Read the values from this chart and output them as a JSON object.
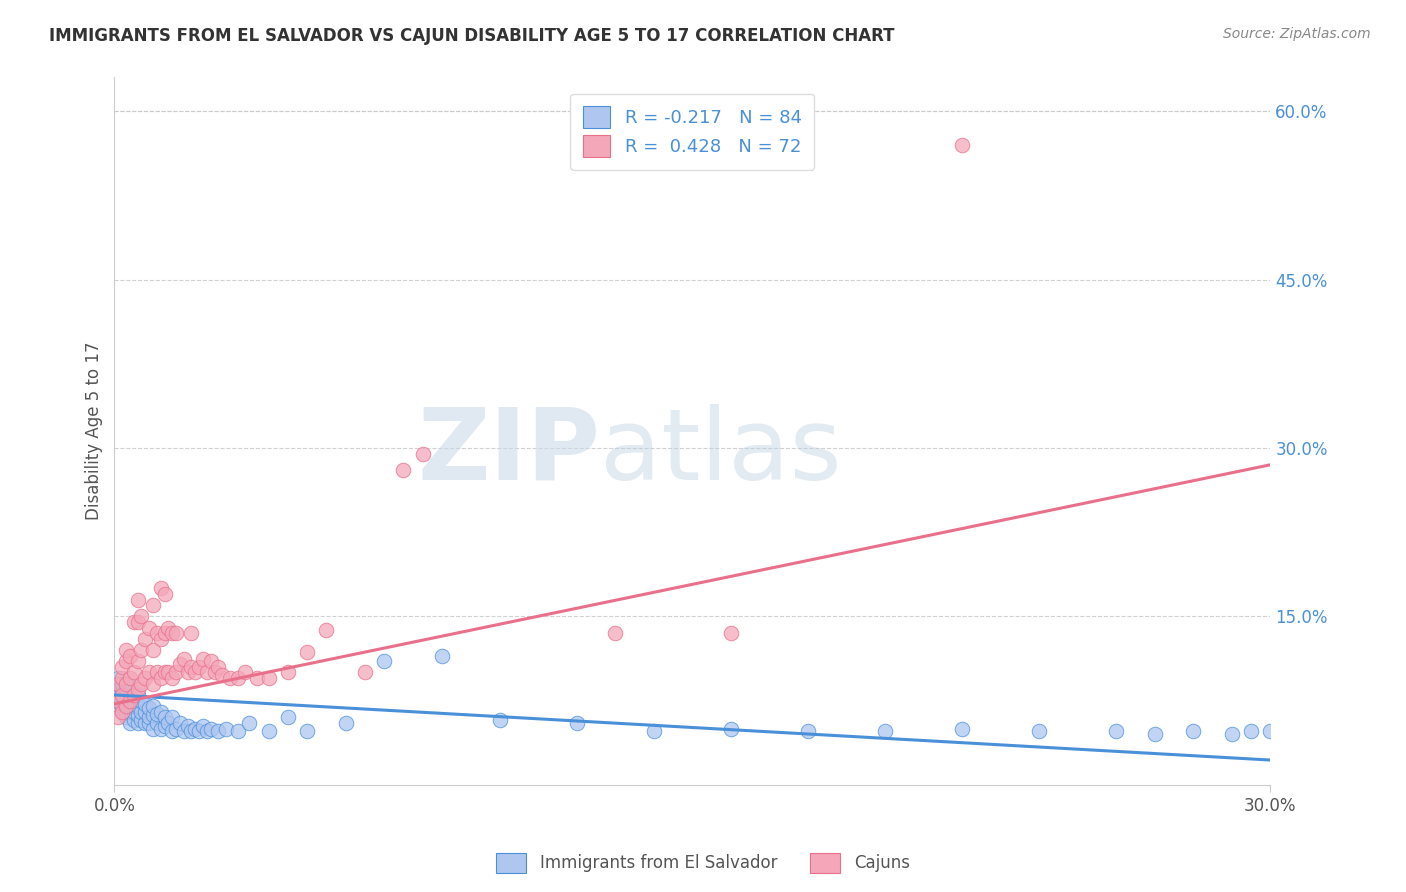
{
  "title": "IMMIGRANTS FROM EL SALVADOR VS CAJUN DISABILITY AGE 5 TO 17 CORRELATION CHART",
  "source": "Source: ZipAtlas.com",
  "ylabel": "Disability Age 5 to 17",
  "xlim": [
    0.0,
    0.3
  ],
  "ylim": [
    0.0,
    0.63
  ],
  "ytick_labels_right": [
    "60.0%",
    "45.0%",
    "30.0%",
    "15.0%"
  ],
  "ytick_vals_right": [
    0.6,
    0.45,
    0.3,
    0.15
  ],
  "blue_R": "-0.217",
  "blue_N": "84",
  "pink_R": "0.428",
  "pink_N": "72",
  "blue_color": "#aec6f0",
  "pink_color": "#f4a7b9",
  "blue_line_color": "#4a90d9",
  "pink_line_color": "#e8708a",
  "legend_label_blue": "Immigrants from El Salvador",
  "legend_label_pink": "Cajuns",
  "blue_trend_x0": 0.0,
  "blue_trend_y0": 0.08,
  "blue_trend_x1": 0.3,
  "blue_trend_y1": 0.022,
  "pink_trend_x0": 0.0,
  "pink_trend_y0": 0.072,
  "pink_trend_x1": 0.3,
  "pink_trend_y1": 0.285,
  "blue_points_x": [
    0.001,
    0.001,
    0.001,
    0.001,
    0.001,
    0.002,
    0.002,
    0.002,
    0.002,
    0.002,
    0.002,
    0.003,
    0.003,
    0.003,
    0.003,
    0.003,
    0.004,
    0.004,
    0.004,
    0.004,
    0.004,
    0.005,
    0.005,
    0.005,
    0.005,
    0.006,
    0.006,
    0.006,
    0.006,
    0.007,
    0.007,
    0.007,
    0.008,
    0.008,
    0.008,
    0.009,
    0.009,
    0.009,
    0.01,
    0.01,
    0.01,
    0.011,
    0.011,
    0.012,
    0.012,
    0.013,
    0.013,
    0.014,
    0.015,
    0.015,
    0.016,
    0.017,
    0.018,
    0.019,
    0.02,
    0.021,
    0.022,
    0.023,
    0.024,
    0.025,
    0.027,
    0.029,
    0.032,
    0.035,
    0.04,
    0.045,
    0.05,
    0.06,
    0.07,
    0.085,
    0.1,
    0.12,
    0.14,
    0.16,
    0.18,
    0.2,
    0.22,
    0.24,
    0.26,
    0.27,
    0.28,
    0.29,
    0.295,
    0.3
  ],
  "blue_points_y": [
    0.075,
    0.08,
    0.085,
    0.09,
    0.095,
    0.065,
    0.07,
    0.075,
    0.08,
    0.085,
    0.09,
    0.06,
    0.065,
    0.07,
    0.075,
    0.085,
    0.055,
    0.065,
    0.07,
    0.078,
    0.088,
    0.058,
    0.065,
    0.07,
    0.08,
    0.055,
    0.062,
    0.07,
    0.08,
    0.058,
    0.065,
    0.075,
    0.055,
    0.065,
    0.072,
    0.055,
    0.06,
    0.068,
    0.05,
    0.062,
    0.07,
    0.055,
    0.063,
    0.05,
    0.065,
    0.052,
    0.06,
    0.055,
    0.048,
    0.06,
    0.05,
    0.055,
    0.048,
    0.052,
    0.048,
    0.05,
    0.048,
    0.052,
    0.048,
    0.05,
    0.048,
    0.05,
    0.048,
    0.055,
    0.048,
    0.06,
    0.048,
    0.055,
    0.11,
    0.115,
    0.058,
    0.055,
    0.048,
    0.05,
    0.048,
    0.048,
    0.05,
    0.048,
    0.048,
    0.045,
    0.048,
    0.045,
    0.048,
    0.048
  ],
  "pink_points_x": [
    0.001,
    0.001,
    0.001,
    0.002,
    0.002,
    0.002,
    0.002,
    0.003,
    0.003,
    0.003,
    0.003,
    0.004,
    0.004,
    0.004,
    0.005,
    0.005,
    0.005,
    0.006,
    0.006,
    0.006,
    0.006,
    0.007,
    0.007,
    0.007,
    0.008,
    0.008,
    0.009,
    0.009,
    0.01,
    0.01,
    0.01,
    0.011,
    0.011,
    0.012,
    0.012,
    0.012,
    0.013,
    0.013,
    0.013,
    0.014,
    0.014,
    0.015,
    0.015,
    0.016,
    0.016,
    0.017,
    0.018,
    0.019,
    0.02,
    0.02,
    0.021,
    0.022,
    0.023,
    0.024,
    0.025,
    0.026,
    0.027,
    0.028,
    0.03,
    0.032,
    0.034,
    0.037,
    0.04,
    0.045,
    0.05,
    0.055,
    0.065,
    0.075,
    0.08,
    0.13,
    0.16,
    0.22
  ],
  "pink_points_y": [
    0.06,
    0.075,
    0.09,
    0.065,
    0.08,
    0.095,
    0.105,
    0.07,
    0.09,
    0.11,
    0.12,
    0.075,
    0.095,
    0.115,
    0.08,
    0.1,
    0.145,
    0.085,
    0.11,
    0.145,
    0.165,
    0.09,
    0.12,
    0.15,
    0.095,
    0.13,
    0.1,
    0.14,
    0.09,
    0.12,
    0.16,
    0.1,
    0.135,
    0.095,
    0.13,
    0.175,
    0.1,
    0.135,
    0.17,
    0.1,
    0.14,
    0.095,
    0.135,
    0.1,
    0.135,
    0.108,
    0.112,
    0.1,
    0.105,
    0.135,
    0.1,
    0.105,
    0.112,
    0.1,
    0.11,
    0.1,
    0.105,
    0.098,
    0.095,
    0.095,
    0.1,
    0.095,
    0.095,
    0.1,
    0.118,
    0.138,
    0.1,
    0.28,
    0.295,
    0.135,
    0.135,
    0.57
  ]
}
